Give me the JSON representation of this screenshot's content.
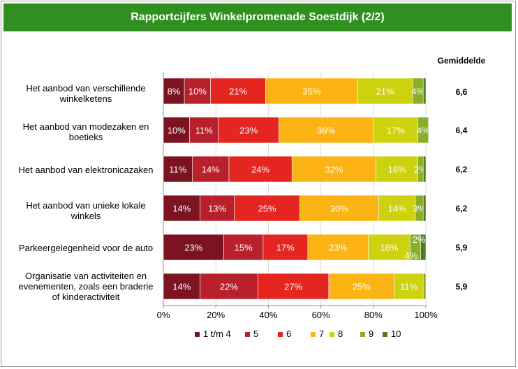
{
  "chart_data": {
    "type": "bar",
    "orientation": "horizontal",
    "stacked": true,
    "percent": true,
    "title": "Rapportcijfers Winkelpromenade Soestdijk (2/2)",
    "categories": [
      "Het aanbod van verschillende winkelketens",
      "Het aanbod van modezaken en boetieks",
      "Het aanbod van elektronicazaken",
      "Het aanbod van unieke lokale winkels",
      "Parkeergelegenheid voor de auto",
      "Organisatie van activiteiten en evenementen, zoals een braderie of kinderactiviteit"
    ],
    "series": [
      {
        "name": "1 t/m 4",
        "color": "#7b1420",
        "values": [
          8,
          10,
          11,
          14,
          23,
          14
        ]
      },
      {
        "name": "5",
        "color": "#b8202c",
        "values": [
          10,
          11,
          14,
          13,
          15,
          22
        ]
      },
      {
        "name": "6",
        "color": "#e42520",
        "values": [
          21,
          23,
          24,
          25,
          17,
          27
        ]
      },
      {
        "name": "7",
        "color": "#fbb414",
        "values": [
          35,
          36,
          32,
          30,
          23,
          25
        ]
      },
      {
        "name": "8",
        "color": "#cdd20e",
        "values": [
          21,
          17,
          16,
          14,
          16,
          11
        ]
      },
      {
        "name": "9",
        "color": "#8cad2a",
        "values": [
          4,
          4,
          2,
          3,
          4,
          1
        ]
      },
      {
        "name": "10",
        "color": "#4f7a1e",
        "values": [
          1,
          0,
          1,
          1,
          2,
          0
        ]
      }
    ],
    "value_labels": [
      [
        "8%",
        "10%",
        "21%",
        "35%",
        "21%",
        "4%",
        ""
      ],
      [
        "10%",
        "11%",
        "23%",
        "36%",
        "17%",
        "4%",
        ""
      ],
      [
        "11%",
        "14%",
        "24%",
        "32%",
        "16%",
        "2%",
        ""
      ],
      [
        "14%",
        "13%",
        "25%",
        "30%",
        "14%",
        "3%",
        ""
      ],
      [
        "23%",
        "15%",
        "17%",
        "23%",
        "16%",
        "4%",
        "2%"
      ],
      [
        "14%",
        "22%",
        "27%",
        "25%",
        "11%",
        "",
        ""
      ]
    ],
    "xlim": [
      0,
      100
    ],
    "xticks": [
      "0%",
      "20%",
      "40%",
      "60%",
      "80%",
      "100%"
    ],
    "legend_position": "bottom",
    "averages_header": "Gemiddelde",
    "averages": [
      "6,6",
      "6,4",
      "6,2",
      "6,2",
      "5,9",
      "5,9"
    ]
  }
}
